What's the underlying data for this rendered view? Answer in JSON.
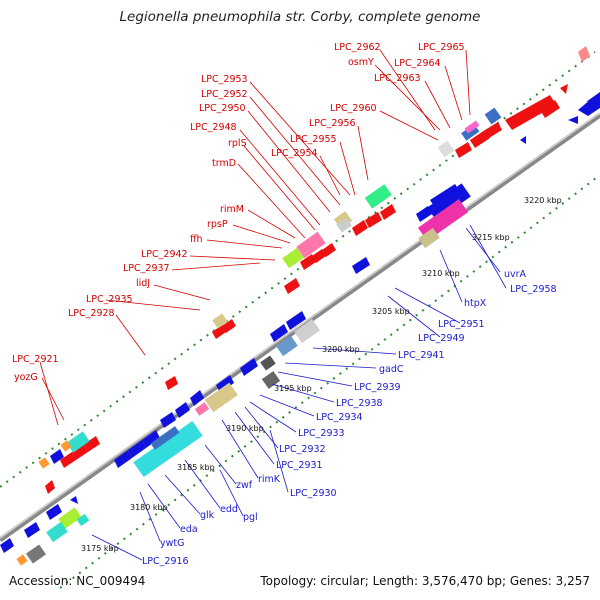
{
  "title": "Legionella pneumophila str. Corby, complete genome",
  "footer": {
    "accession": "Accession: NC_009494",
    "summary": "Topology: circular; Length: 3,576,470 bp; Genes: 3,257"
  },
  "colors": {
    "forward": "#ee1111",
    "reverse": "#1111dd",
    "backbone": "#9a9a9a",
    "dots": "#2e8b2e"
  },
  "kbp_labels": [
    "3175 kbp",
    "3180 kbp",
    "3185 kbp",
    "3190 kbp",
    "3195 kbp",
    "3200 kbp",
    "3205 kbp",
    "3210 kbp",
    "3215 kbp",
    "3220 kbp"
  ],
  "red_labels": [
    "LPC_2962",
    "LPC_2965",
    "osmY",
    "LPC_2964",
    "LPC_2963",
    "LPC_2953",
    "LPC_2952",
    "LPC_2950",
    "LPC_2960",
    "LPC_2956",
    "LPC_2948",
    "LPC_2955",
    "rplS",
    "LPC_2954",
    "trmD",
    "rimM",
    "rpsP",
    "ffh",
    "LPC_2942",
    "LPC_2937",
    "lidJ",
    "LPC_2935",
    "LPC_2928",
    "LPC_2921",
    "yozG"
  ],
  "blue_labels": [
    "uvrA",
    "LPC_2958",
    "htpX",
    "LPC_2951",
    "LPC_2949",
    "LPC_2941",
    "gadC",
    "LPC_2939",
    "LPC_2938",
    "LPC_2934",
    "LPC_2933",
    "LPC_2932",
    "LPC_2931",
    "rimK",
    "LPC_2930",
    "zwf",
    "edd",
    "pgl",
    "glk",
    "eda",
    "ywtG",
    "LPC_2916"
  ]
}
